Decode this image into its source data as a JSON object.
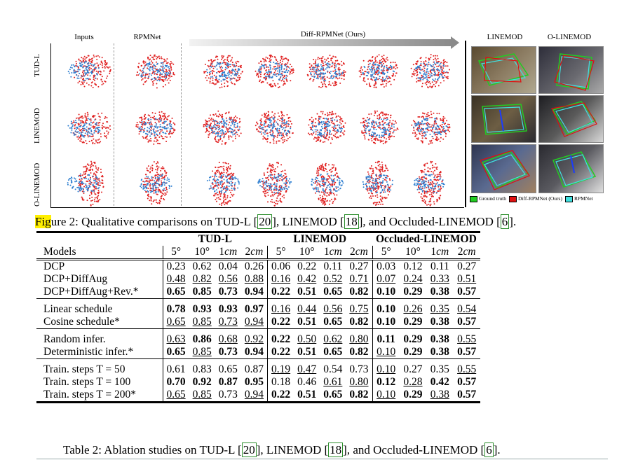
{
  "figure": {
    "column_labels": {
      "inputs": "Inputs",
      "rpmnet": "RPMNet",
      "diff": "Diff-RPMNet (Ours)",
      "linemod": "LINEMOD",
      "olinemod": "O-LINEMOD"
    },
    "row_labels": [
      "TUD-L",
      "LINEMOD",
      "O-LINEMOD"
    ],
    "legend": {
      "gt": "Ground truth",
      "diff": "Diff-RPMNet (Ours)",
      "rpm": "RPMNet"
    },
    "legend_colors": {
      "gt": "#22cc22",
      "diff": "#e01010",
      "rpm": "#40e0e0"
    },
    "caption": {
      "hl": "Fig",
      "pre": "ure 2: Qualitative comparisons on TUD-L [",
      "c1": "20",
      "mid1": "], LINEMOD [",
      "c2": "18",
      "mid2": "], and Occluded-LINEMOD [",
      "c3": "6",
      "post": "]."
    }
  },
  "table": {
    "groups": [
      "TUD-L",
      "LINEMOD",
      "Occluded-LINEMOD"
    ],
    "models_header": "Models",
    "sub": [
      "5°",
      "10°",
      "1cm",
      "2cm"
    ],
    "rows": [
      {
        "name": "DCP",
        "vals": [
          "0.23",
          "0.62",
          "0.04",
          "0.26",
          "0.06",
          "0.22",
          "0.11",
          "0.27",
          "0.03",
          "0.12",
          "0.11",
          "0.27"
        ],
        "style": "nnnnnnnnnnnn"
      },
      {
        "name": "DCP+DiffAug",
        "vals": [
          "0.48",
          "0.82",
          "0.56",
          "0.88",
          "0.16",
          "0.42",
          "0.52",
          "0.71",
          "0.07",
          "0.24",
          "0.33",
          "0.51"
        ],
        "style": "uuuuuuuuuuuu"
      },
      {
        "name": "DCP+DiffAug+Rev.*",
        "vals": [
          "0.65",
          "0.85",
          "0.73",
          "0.94",
          "0.22",
          "0.51",
          "0.65",
          "0.82",
          "0.10",
          "0.29",
          "0.38",
          "0.57"
        ],
        "style": "bbbbbbbbbbbb"
      },
      {
        "name": "Linear schedule",
        "vals": [
          "0.78",
          "0.93",
          "0.93",
          "0.97",
          "0.16",
          "0.44",
          "0.56",
          "0.75",
          "0.10",
          "0.26",
          "0.35",
          "0.54"
        ],
        "style": "bbbbuuuubuuu"
      },
      {
        "name": "Cosine schedule*",
        "vals": [
          "0.65",
          "0.85",
          "0.73",
          "0.94",
          "0.22",
          "0.51",
          "0.65",
          "0.82",
          "0.10",
          "0.29",
          "0.38",
          "0.57"
        ],
        "style": "uuuubbbbbbbb"
      },
      {
        "name": "Random infer.",
        "vals": [
          "0.63",
          "0.86",
          "0.68",
          "0.92",
          "0.22",
          "0.50",
          "0.62",
          "0.80",
          "0.11",
          "0.29",
          "0.38",
          "0.55"
        ],
        "style": "ubuubuuubbbu"
      },
      {
        "name": "Deterministic infer.*",
        "vals": [
          "0.65",
          "0.85",
          "0.73",
          "0.94",
          "0.22",
          "0.51",
          "0.65",
          "0.82",
          "0.10",
          "0.29",
          "0.38",
          "0.57"
        ],
        "style": "bubbbbbbubbb"
      },
      {
        "name": "Train. steps T = 50",
        "vals": [
          "0.61",
          "0.83",
          "0.65",
          "0.87",
          "0.19",
          "0.47",
          "0.54",
          "0.73",
          "0.10",
          "0.27",
          "0.35",
          "0.55"
        ],
        "style": "nnnnuunnunnu"
      },
      {
        "name": "Train. steps T = 100",
        "vals": [
          "0.70",
          "0.92",
          "0.87",
          "0.95",
          "0.18",
          "0.46",
          "0.61",
          "0.80",
          "0.12",
          "0.28",
          "0.42",
          "0.57"
        ],
        "style": "bbbbnnuububb"
      },
      {
        "name": "Train. steps T = 200*",
        "vals": [
          "0.65",
          "0.85",
          "0.73",
          "0.94",
          "0.22",
          "0.51",
          "0.65",
          "0.82",
          "0.10",
          "0.29",
          "0.38",
          "0.57"
        ],
        "style": "uunubbbbubub"
      }
    ],
    "caption": {
      "pre": "Table 2: Ablation studies on TUD-L [",
      "c1": "20",
      "mid1": "], LINEMOD [",
      "c2": "18",
      "mid2": "], and Occluded-LINEMOD [",
      "c3": "6",
      "post": "]."
    }
  }
}
